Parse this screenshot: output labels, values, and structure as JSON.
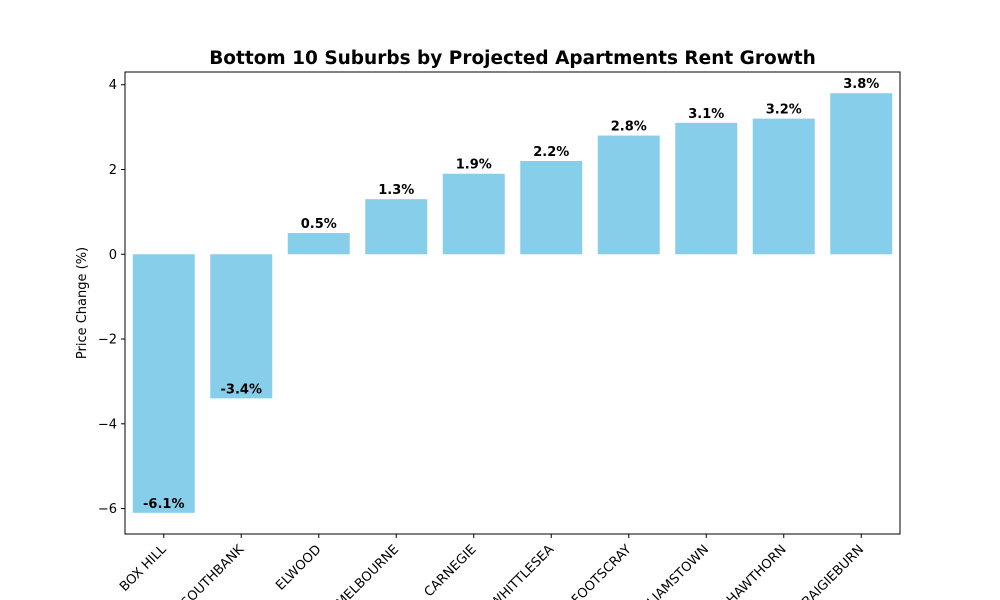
{
  "chart_data": {
    "type": "bar",
    "title": "Bottom 10 Suburbs by Projected Apartments Rent Growth",
    "xlabel": "",
    "ylabel": "Price Change (%)",
    "categories": [
      "BOX HILL",
      "SOUTHBANK",
      "ELWOOD",
      "MELBOURNE",
      "CARNEGIE",
      "WHITTLESEA",
      "FOOTSCRAY",
      "WILLIAMSTOWN",
      "HAWTHORN",
      "CRAIGIEBURN"
    ],
    "values": [
      -6.1,
      -3.4,
      0.5,
      1.3,
      1.9,
      2.2,
      2.8,
      3.1,
      3.2,
      3.8
    ],
    "data_labels": [
      "-6.1%",
      "-3.4%",
      "0.5%",
      "1.3%",
      "1.9%",
      "2.2%",
      "2.8%",
      "3.1%",
      "3.2%",
      "3.8%"
    ],
    "ylim": [
      -6.6,
      4.3
    ],
    "yticks": [
      -6,
      -4,
      -2,
      0,
      2,
      4
    ],
    "ytick_labels": [
      "−6",
      "−4",
      "−2",
      "0",
      "2",
      "4"
    ],
    "grid": false,
    "bar_color": "#87ceeb"
  }
}
